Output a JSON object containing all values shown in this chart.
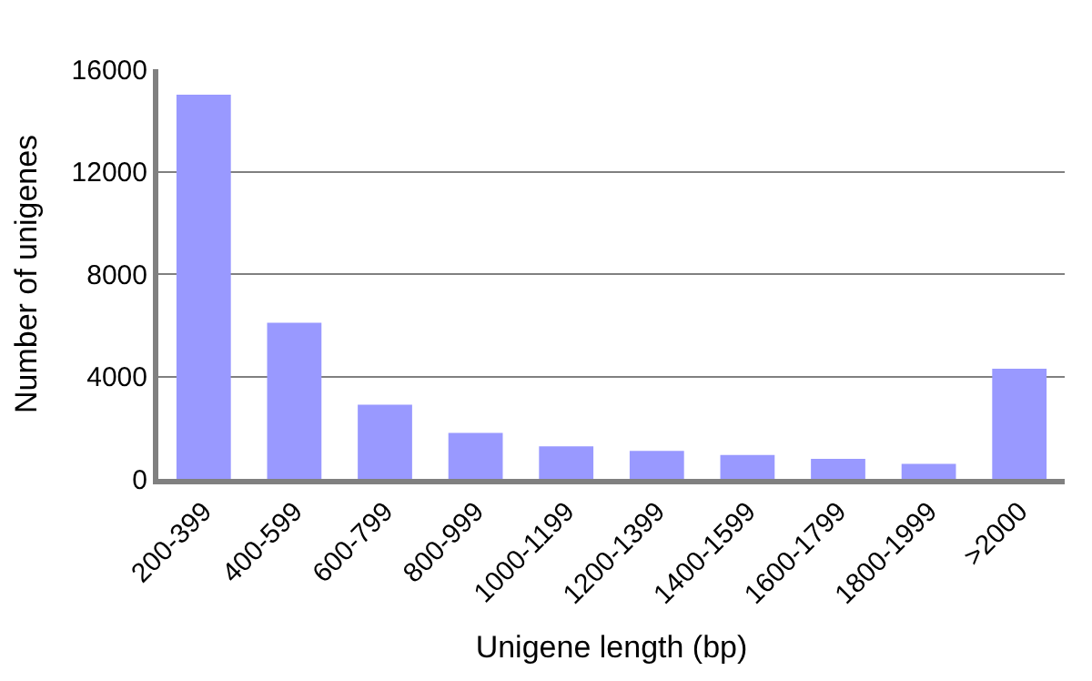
{
  "chart_data": {
    "type": "bar",
    "xlabel": "Unigene length (bp)",
    "ylabel": "Number of unigenes",
    "categories": [
      "200-399",
      "400-599",
      "600-799",
      "800-999",
      "1000-1199",
      "1200-1399",
      "1400-1599",
      "1600-1799",
      "1800-1999",
      ">2000"
    ],
    "values": [
      15000,
      6100,
      2900,
      1800,
      1270,
      1090,
      930,
      780,
      590,
      4300
    ],
    "color": "#9999ff",
    "ylim": [
      0,
      16000
    ],
    "yticks": [
      0,
      4000,
      8000,
      12000,
      16000
    ],
    "grid": "y",
    "legend": false
  }
}
